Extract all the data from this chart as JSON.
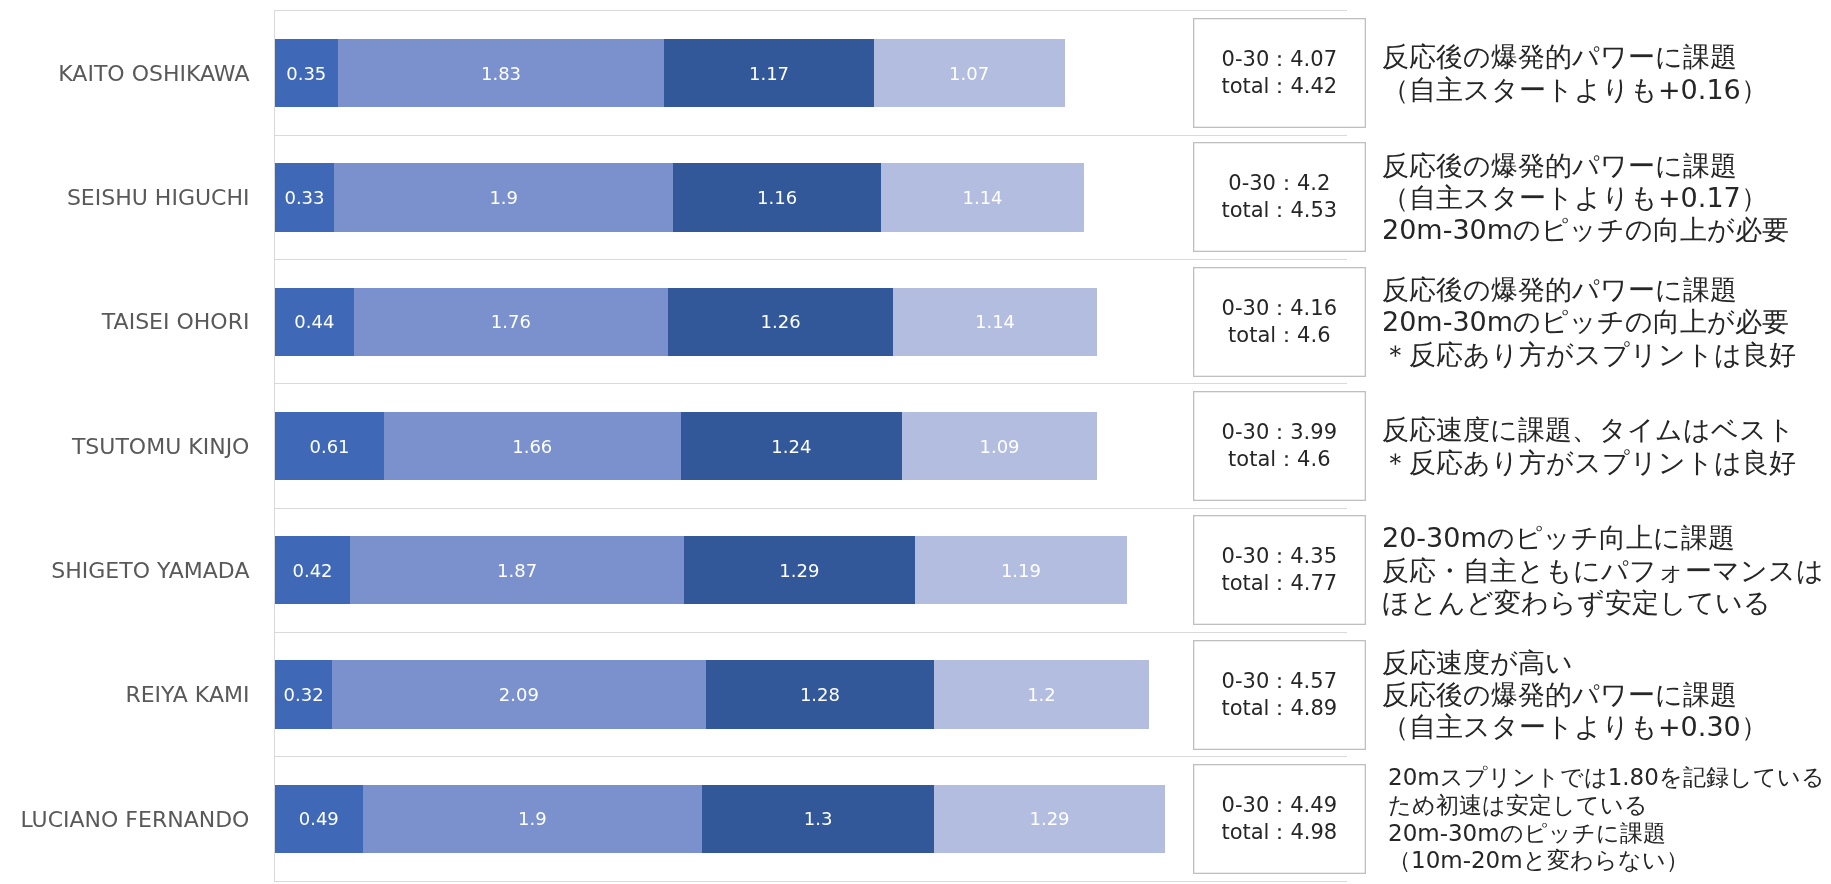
{
  "chart_data": {
    "type": "bar",
    "orientation": "horizontal",
    "stacked": true,
    "data_labels": true,
    "tick_labels": "y",
    "grid": "y",
    "xlim": [
      0,
      6
    ],
    "categories": [
      "KAITO OSHIKAWA",
      "SEISHU HIGUCHI",
      "TAISEI OHORI",
      "TSUTOMU KINJO",
      "SHIGETO YAMADA",
      "REIYA KAMI",
      "LUCIANO FERNANDO"
    ],
    "series": [
      {
        "color": "#3f69b6",
        "values": [
          0.35,
          0.33,
          0.44,
          0.61,
          0.42,
          0.32,
          0.49
        ]
      },
      {
        "color": "#7a91cd",
        "values": [
          1.83,
          1.9,
          1.76,
          1.66,
          1.87,
          2.09,
          1.9
        ]
      },
      {
        "color": "#335899",
        "values": [
          1.17,
          1.16,
          1.26,
          1.24,
          1.29,
          1.28,
          1.3
        ]
      },
      {
        "color": "#b3bddf",
        "values": [
          1.07,
          1.14,
          1.14,
          1.09,
          1.19,
          1.2,
          1.29
        ]
      }
    ],
    "annotations": [
      "0-30：4.07\ntotal：4.42",
      "反応後の爆発的パワーに課題",
      "（自主スタートよりも+0.16）",
      "0-30：4.2\ntotal：4.53",
      "反応後の爆発的パワーに課題",
      "（自主スタートよりも+0.17）",
      "20m-30mのピッチの向上が必要",
      "0-30：4.16\ntotal：4.6",
      "反応後の爆発的パワーに課題",
      "20m-30mのピッチの向上が必要",
      "＊反応あり方がスプリントは良好",
      "0-30：3.99\ntotal：4.6",
      "反応速度に課題、タイムはベスト",
      "＊反応あり方がスプリントは良好",
      "0-30：4.35\ntotal：4.77",
      "20-30mのピッチ向上に課題",
      "反応・自主ともにパフォーマンスは",
      "ほとんど変わらず安定している",
      "0-30：4.57\ntotal：4.89",
      "反応速度が高い",
      "反応後の爆発的パワーに課題",
      "（自主スタートよりも+0.30）",
      "0-30：4.49\ntotal：4.98",
      "20mスプリントでは1.80を記録している",
      "ため初速は安定している",
      "20m-30mのピッチに課題",
      "（10m-20mと変わらない）"
    ]
  }
}
